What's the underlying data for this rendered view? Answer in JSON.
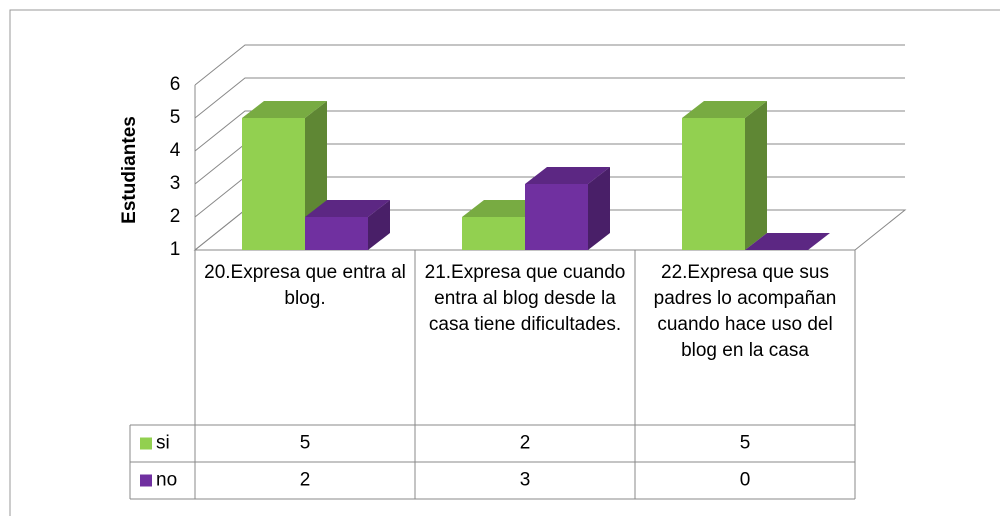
{
  "chart_data": {
    "type": "bar3d",
    "ylabel": "Estudiantes",
    "categories": [
      "20.Expresa que entra al blog.",
      "21.Expresa que cuando entra al blog desde la casa tiene dificultades.",
      "22.Expresa que sus padres lo acompañan cuando hace uso del blog en la casa"
    ],
    "series": [
      {
        "name": "si",
        "color": "#92d050",
        "values": [
          5,
          2,
          5
        ]
      },
      {
        "name": "no",
        "color": "#7030a0",
        "values": [
          2,
          3,
          0
        ]
      }
    ],
    "ylim": [
      1,
      6
    ],
    "yticks": [
      1,
      2,
      3,
      4,
      5,
      6
    ],
    "grid": true
  }
}
